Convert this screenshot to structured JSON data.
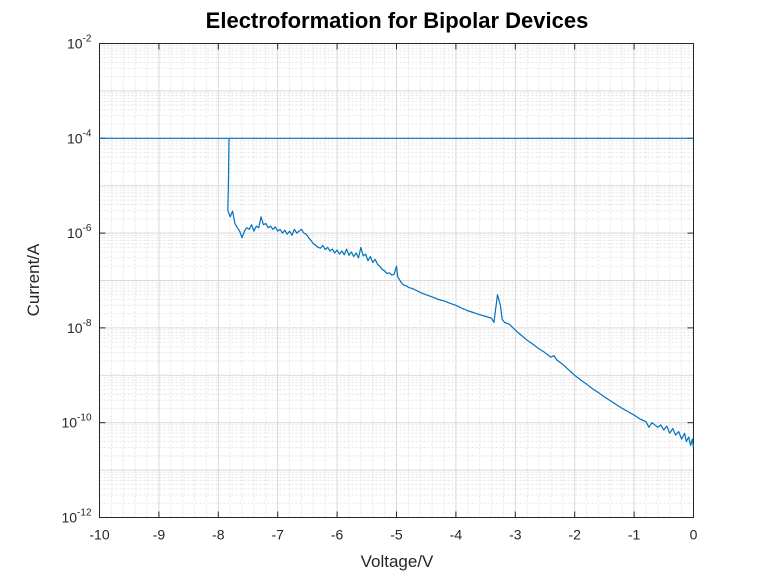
{
  "chart_data": {
    "type": "line",
    "title": "Electroformation for Bipolar Devices",
    "xlabel": "Voltage/V",
    "ylabel": "Current/A",
    "xlim": [
      -10,
      0
    ],
    "ylim": [
      1e-12,
      0.01
    ],
    "yscale": "log",
    "grid": true,
    "minor_grid": true,
    "x_ticks": [
      -10,
      -9,
      -8,
      -7,
      -6,
      -5,
      -4,
      -3,
      -2,
      -1,
      0
    ],
    "x_tick_labels": [
      "-10",
      "-9",
      "-8",
      "-7",
      "-6",
      "-5",
      "-4",
      "-3",
      "-2",
      "-1",
      "0"
    ],
    "y_ticks": [
      {
        "base": "10",
        "exp": "-12",
        "value": 1e-12
      },
      {
        "base": "10",
        "exp": "-10",
        "value": 1e-10
      },
      {
        "base": "10",
        "exp": "-8",
        "value": 1e-08
      },
      {
        "base": "10",
        "exp": "-6",
        "value": 1e-06
      },
      {
        "base": "10",
        "exp": "-4",
        "value": 0.0001
      },
      {
        "base": "10",
        "exp": "-2",
        "value": 0.01
      }
    ],
    "series": [
      {
        "color": "#0072bd",
        "points": [
          [
            0,
            0.0001
          ],
          [
            -10,
            0.0001
          ],
          [
            -7.82,
            0.0001
          ],
          [
            -7.83,
            1e-05
          ],
          [
            -7.84,
            3e-06
          ],
          [
            -7.8,
            2.2e-06
          ],
          [
            -7.76,
            2.9e-06
          ],
          [
            -7.72,
            1.6e-06
          ],
          [
            -7.68,
            1.3e-06
          ],
          [
            -7.64,
            1.1e-06
          ],
          [
            -7.6,
            8e-07
          ],
          [
            -7.56,
            1.1e-06
          ],
          [
            -7.52,
            1.3e-06
          ],
          [
            -7.48,
            1.2e-06
          ],
          [
            -7.44,
            1.5e-06
          ],
          [
            -7.4,
            1.1e-06
          ],
          [
            -7.36,
            1.4e-06
          ],
          [
            -7.32,
            1.3e-06
          ],
          [
            -7.28,
            2.2e-06
          ],
          [
            -7.24,
            1.5e-06
          ],
          [
            -7.2,
            1.6e-06
          ],
          [
            -7.16,
            1.3e-06
          ],
          [
            -7.12,
            1.4e-06
          ],
          [
            -7.08,
            1.2e-06
          ],
          [
            -7.04,
            1.35e-06
          ],
          [
            -7.0,
            1.1e-06
          ],
          [
            -6.96,
            1.2e-06
          ],
          [
            -6.92,
            1e-06
          ],
          [
            -6.88,
            1.15e-06
          ],
          [
            -6.84,
            9.5e-07
          ],
          [
            -6.8,
            1.1e-06
          ],
          [
            -6.76,
            9e-07
          ],
          [
            -6.72,
            1.2e-06
          ],
          [
            -6.68,
            1e-06
          ],
          [
            -6.64,
            1.1e-06
          ],
          [
            -6.6,
            1.2e-06
          ],
          [
            -6.56,
            1e-06
          ],
          [
            -6.52,
            9.5e-07
          ],
          [
            -6.48,
            8e-07
          ],
          [
            -6.44,
            7e-07
          ],
          [
            -6.4,
            6e-07
          ],
          [
            -6.36,
            5.5e-07
          ],
          [
            -6.32,
            5e-07
          ],
          [
            -6.28,
            4.8e-07
          ],
          [
            -6.24,
            5.5e-07
          ],
          [
            -6.2,
            4.5e-07
          ],
          [
            -6.16,
            5e-07
          ],
          [
            -6.12,
            4.2e-07
          ],
          [
            -6.08,
            4.6e-07
          ],
          [
            -6.04,
            3.8e-07
          ],
          [
            -6.0,
            4.4e-07
          ],
          [
            -5.96,
            3.6e-07
          ],
          [
            -5.92,
            4.2e-07
          ],
          [
            -5.88,
            3.5e-07
          ],
          [
            -5.84,
            4.6e-07
          ],
          [
            -5.8,
            3.4e-07
          ],
          [
            -5.76,
            4e-07
          ],
          [
            -5.72,
            3.2e-07
          ],
          [
            -5.68,
            3.8e-07
          ],
          [
            -5.64,
            3e-07
          ],
          [
            -5.6,
            5e-07
          ],
          [
            -5.56,
            3.3e-07
          ],
          [
            -5.52,
            3.6e-07
          ],
          [
            -5.48,
            2.6e-07
          ],
          [
            -5.44,
            3.2e-07
          ],
          [
            -5.4,
            2.4e-07
          ],
          [
            -5.36,
            2.8e-07
          ],
          [
            -5.32,
            2.2e-07
          ],
          [
            -5.28,
            2e-07
          ],
          [
            -5.24,
            1.7e-07
          ],
          [
            -5.2,
            1.6e-07
          ],
          [
            -5.16,
            1.4e-07
          ],
          [
            -5.12,
            1.45e-07
          ],
          [
            -5.08,
            1.3e-07
          ],
          [
            -5.04,
            1.35e-07
          ],
          [
            -5.0,
            2e-07
          ],
          [
            -4.98,
            1.2e-07
          ],
          [
            -4.96,
            1.1e-07
          ],
          [
            -4.92,
            9e-08
          ],
          [
            -4.88,
            8e-08
          ],
          [
            -4.84,
            7.8e-08
          ],
          [
            -4.8,
            7.2e-08
          ],
          [
            -4.7,
            6.5e-08
          ],
          [
            -4.6,
            5.6e-08
          ],
          [
            -4.5,
            5e-08
          ],
          [
            -4.4,
            4.5e-08
          ],
          [
            -4.3,
            4e-08
          ],
          [
            -4.2,
            3.7e-08
          ],
          [
            -4.1,
            3.3e-08
          ],
          [
            -4.0,
            3e-08
          ],
          [
            -3.9,
            2.6e-08
          ],
          [
            -3.8,
            2.3e-08
          ],
          [
            -3.7,
            2.1e-08
          ],
          [
            -3.6,
            1.9e-08
          ],
          [
            -3.5,
            1.75e-08
          ],
          [
            -3.4,
            1.6e-08
          ],
          [
            -3.36,
            1.3e-08
          ],
          [
            -3.3,
            5e-08
          ],
          [
            -3.25,
            3e-08
          ],
          [
            -3.22,
            1.5e-08
          ],
          [
            -3.18,
            1.3e-08
          ],
          [
            -3.1,
            1.2e-08
          ],
          [
            -3.0,
            9e-09
          ],
          [
            -2.9,
            7e-09
          ],
          [
            -2.8,
            5.5e-09
          ],
          [
            -2.7,
            4.5e-09
          ],
          [
            -2.6,
            3.6e-09
          ],
          [
            -2.5,
            3e-09
          ],
          [
            -2.4,
            2.4e-09
          ],
          [
            -2.35,
            2.6e-09
          ],
          [
            -2.3,
            2.1e-09
          ],
          [
            -2.2,
            1.7e-09
          ],
          [
            -2.1,
            1.3e-09
          ],
          [
            -2.0,
            1e-09
          ],
          [
            -1.9,
            8e-10
          ],
          [
            -1.8,
            6.5e-10
          ],
          [
            -1.7,
            5.2e-10
          ],
          [
            -1.6,
            4.3e-10
          ],
          [
            -1.5,
            3.5e-10
          ],
          [
            -1.4,
            2.9e-10
          ],
          [
            -1.3,
            2.4e-10
          ],
          [
            -1.2,
            2e-10
          ],
          [
            -1.1,
            1.7e-10
          ],
          [
            -1.0,
            1.45e-10
          ],
          [
            -0.9,
            1.2e-10
          ],
          [
            -0.8,
            1.05e-10
          ],
          [
            -0.75,
            8e-11
          ],
          [
            -0.7,
            1e-10
          ],
          [
            -0.6,
            8e-11
          ],
          [
            -0.55,
            9e-11
          ],
          [
            -0.5,
            7e-11
          ],
          [
            -0.45,
            8.5e-11
          ],
          [
            -0.4,
            6e-11
          ],
          [
            -0.35,
            7.5e-11
          ],
          [
            -0.3,
            5.5e-11
          ],
          [
            -0.25,
            6.5e-11
          ],
          [
            -0.2,
            4.5e-11
          ],
          [
            -0.15,
            6e-11
          ],
          [
            -0.12,
            4e-11
          ],
          [
            -0.08,
            5e-11
          ],
          [
            -0.05,
            3.3e-11
          ],
          [
            -0.02,
            4.5e-11
          ],
          [
            0,
            3e-11
          ]
        ]
      }
    ]
  }
}
